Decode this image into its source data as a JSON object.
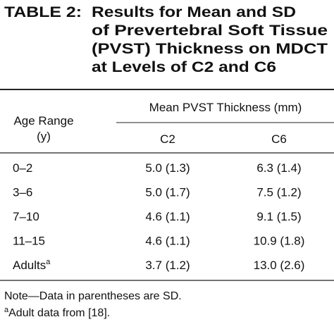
{
  "table": {
    "label": "TABLE 2:",
    "title_lines": [
      "Results for Mean and SD",
      "of Prevertebral Soft Tissue",
      "(PVST) Thickness on MDCT",
      "at Levels of C2 and C6"
    ],
    "row_header_lines": [
      "Age Range",
      "(y)"
    ],
    "group_header": "Mean PVST Thickness (mm)",
    "columns": [
      "C2",
      "C6"
    ],
    "rows": [
      {
        "label": "0–2",
        "cells": [
          "5.0 (1.3)",
          "6.3 (1.4)"
        ]
      },
      {
        "label": "3–6",
        "cells": [
          "5.0 (1.7)",
          "7.5 (1.2)"
        ]
      },
      {
        "label": "7–10",
        "cells": [
          "4.6 (1.1)",
          "9.1 (1.5)"
        ]
      },
      {
        "label": "11–15",
        "cells": [
          "4.6 (1.1)",
          "10.9 (1.8)"
        ]
      },
      {
        "label": "Adults",
        "sup": "a",
        "cells": [
          "3.7 (1.2)",
          "13.0 (2.6)"
        ]
      }
    ],
    "notes": [
      {
        "text": "Note—Data in parentheses are SD."
      },
      {
        "sup": "a",
        "text": "Adult data from [18]."
      }
    ]
  }
}
